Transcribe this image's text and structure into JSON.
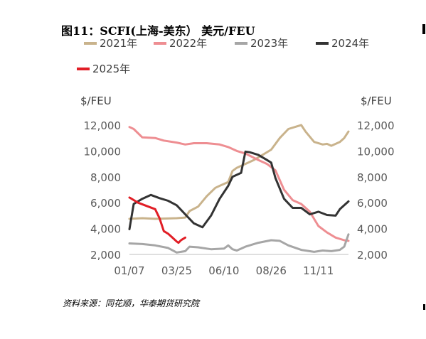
{
  "header": {
    "title": "图11：SCFI(上海-美东） 美元/FEU"
  },
  "footer": {
    "source": "资料来源：同花顺，华泰期货研究院"
  },
  "chart_data": {
    "type": "line",
    "title": "图11：SCFI(上海-美东） 美元/FEU",
    "ylabel_left": "$/FEU",
    "ylabel_right": "$/FEU",
    "ylim": [
      2000,
      12000
    ],
    "yticks": [
      "2,000",
      "4,000",
      "6,000",
      "8,000",
      "10,000",
      "12,000"
    ],
    "ytick_values": [
      2000,
      4000,
      6000,
      8000,
      10000,
      12000
    ],
    "x_range": [
      "01/07",
      "12/30"
    ],
    "xticks": [
      "01/07",
      "03/25",
      "06/10",
      "08/26",
      "11/11"
    ],
    "legend_placement": "top",
    "grid": false,
    "series": [
      {
        "name": "2021年",
        "color": "#c9b38c",
        "points": [
          [
            "01/07",
            4750
          ],
          [
            "01/28",
            4800
          ],
          [
            "02/18",
            4750
          ],
          [
            "03/11",
            4780
          ],
          [
            "03/25",
            4800
          ],
          [
            "04/08",
            4850
          ],
          [
            "04/15",
            5350
          ],
          [
            "04/29",
            5700
          ],
          [
            "05/13",
            6500
          ],
          [
            "05/27",
            7150
          ],
          [
            "06/03",
            7300
          ],
          [
            "06/17",
            7600
          ],
          [
            "06/24",
            8450
          ],
          [
            "07/01",
            8700
          ],
          [
            "07/15",
            9000
          ],
          [
            "07/29",
            9300
          ],
          [
            "08/12",
            9700
          ],
          [
            "08/26",
            10100
          ],
          [
            "09/09",
            11000
          ],
          [
            "09/23",
            11700
          ],
          [
            "10/07",
            11900
          ],
          [
            "10/14",
            12000
          ],
          [
            "10/21",
            11500
          ],
          [
            "11/04",
            10700
          ],
          [
            "11/18",
            10500
          ],
          [
            "11/25",
            10550
          ],
          [
            "12/02",
            10400
          ],
          [
            "12/16",
            10700
          ],
          [
            "12/23",
            11000
          ],
          [
            "12/30",
            11500
          ]
        ]
      },
      {
        "name": "2022年",
        "color": "#ee8e92",
        "points": [
          [
            "01/07",
            11850
          ],
          [
            "01/14",
            11700
          ],
          [
            "01/28",
            11050
          ],
          [
            "02/18",
            11000
          ],
          [
            "03/04",
            10800
          ],
          [
            "03/25",
            10650
          ],
          [
            "04/08",
            10500
          ],
          [
            "04/22",
            10600
          ],
          [
            "05/13",
            10600
          ],
          [
            "06/03",
            10500
          ],
          [
            "06/17",
            10300
          ],
          [
            "07/01",
            10000
          ],
          [
            "07/15",
            9800
          ],
          [
            "08/05",
            9300
          ],
          [
            "08/19",
            9000
          ],
          [
            "09/02",
            8500
          ],
          [
            "09/16",
            7000
          ],
          [
            "09/30",
            6200
          ],
          [
            "10/14",
            5900
          ],
          [
            "10/28",
            5300
          ],
          [
            "11/11",
            4200
          ],
          [
            "11/25",
            3700
          ],
          [
            "12/09",
            3300
          ],
          [
            "12/23",
            3100
          ],
          [
            "12/30",
            3050
          ]
        ]
      },
      {
        "name": "2023年",
        "color": "#a6a6a6",
        "points": [
          [
            "01/07",
            2850
          ],
          [
            "01/28",
            2800
          ],
          [
            "02/18",
            2700
          ],
          [
            "03/11",
            2500
          ],
          [
            "03/25",
            2150
          ],
          [
            "04/08",
            2250
          ],
          [
            "04/15",
            2600
          ],
          [
            "04/29",
            2550
          ],
          [
            "05/20",
            2400
          ],
          [
            "06/10",
            2450
          ],
          [
            "06/17",
            2700
          ],
          [
            "06/24",
            2400
          ],
          [
            "07/01",
            2300
          ],
          [
            "07/15",
            2600
          ],
          [
            "08/05",
            2900
          ],
          [
            "08/26",
            3100
          ],
          [
            "09/09",
            3050
          ],
          [
            "09/23",
            2700
          ],
          [
            "10/14",
            2350
          ],
          [
            "11/04",
            2200
          ],
          [
            "11/18",
            2300
          ],
          [
            "12/02",
            2250
          ],
          [
            "12/16",
            2350
          ],
          [
            "12/23",
            2600
          ],
          [
            "12/30",
            3550
          ]
        ]
      },
      {
        "name": "2024年",
        "color": "#333333",
        "points": [
          [
            "01/07",
            3950
          ],
          [
            "01/14",
            5900
          ],
          [
            "01/28",
            6300
          ],
          [
            "02/11",
            6600
          ],
          [
            "02/25",
            6350
          ],
          [
            "03/11",
            6150
          ],
          [
            "03/25",
            5800
          ],
          [
            "04/08",
            5100
          ],
          [
            "04/22",
            4400
          ],
          [
            "05/06",
            4100
          ],
          [
            "05/20",
            5000
          ],
          [
            "06/03",
            6300
          ],
          [
            "06/17",
            7300
          ],
          [
            "06/24",
            8000
          ],
          [
            "07/08",
            8300
          ],
          [
            "07/15",
            9950
          ],
          [
            "07/22",
            9900
          ],
          [
            "08/05",
            9700
          ],
          [
            "08/19",
            9300
          ],
          [
            "08/26",
            9100
          ],
          [
            "09/02",
            7900
          ],
          [
            "09/16",
            6300
          ],
          [
            "09/30",
            5600
          ],
          [
            "10/14",
            5600
          ],
          [
            "10/28",
            5100
          ],
          [
            "11/11",
            5300
          ],
          [
            "11/25",
            5050
          ],
          [
            "12/09",
            5000
          ],
          [
            "12/16",
            5500
          ],
          [
            "12/30",
            6100
          ]
        ]
      },
      {
        "name": "2025年",
        "color": "#e11e26",
        "points": [
          [
            "01/07",
            6400
          ],
          [
            "01/21",
            6000
          ],
          [
            "02/04",
            5750
          ],
          [
            "02/18",
            5500
          ],
          [
            "02/25",
            4800
          ],
          [
            "03/04",
            3800
          ],
          [
            "03/11",
            3600
          ],
          [
            "03/18",
            3300
          ],
          [
            "03/25",
            3000
          ],
          [
            "03/28",
            2900
          ],
          [
            "04/01",
            3100
          ],
          [
            "04/08",
            3300
          ]
        ]
      }
    ]
  }
}
